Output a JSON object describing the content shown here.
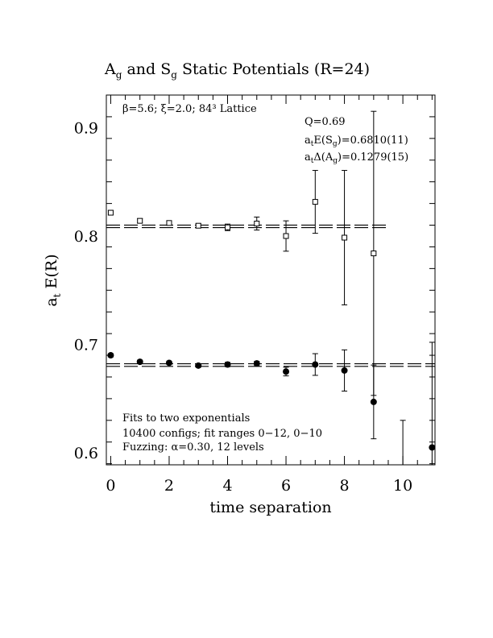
{
  "chart_data": {
    "type": "scatter",
    "title": {
      "pre": "A",
      "sub1": "g",
      "mid": " and S",
      "sub2": "g",
      "post": " Static Potentials (R=24)"
    },
    "xlabel": "time separation",
    "ylabel": {
      "main": "a",
      "sub": "t",
      "rest": " E(R)"
    },
    "xlim": [
      -0.15,
      11.1
    ],
    "ylim": [
      0.589,
      0.93
    ],
    "x_ticks": [
      "0",
      "2",
      "4",
      "6",
      "8",
      "10"
    ],
    "y_ticks": [
      "0.6",
      "0.7",
      "0.8",
      "0.9"
    ],
    "annotations": {
      "lattice": "β=5.6; ξ=2.0; 84³ Lattice",
      "q": "Q=0.69",
      "es": {
        "pre": "a",
        "sub1": "t",
        "mid": "E(S",
        "sub2": "g",
        "post": ")=0.6810(11)"
      },
      "da": {
        "pre": "a",
        "sub1": "t",
        "mid": "Δ(A",
        "sub2": "g",
        "post": ")=0.1279(15)"
      },
      "fit1": "Fits to two exponentials",
      "fit2": "10400 configs; fit ranges 0−12, 0−10",
      "fit3": "Fuzzing: α=0.30, 12 levels"
    },
    "series": [
      {
        "marker": "open-square",
        "fit": 0.8089,
        "fit_x": [
          -0.15,
          9.45
        ],
        "points": [
          {
            "x": 0,
            "y": 0.8215,
            "err": 0.002
          },
          {
            "x": 1,
            "y": 0.814,
            "err": 0.002
          },
          {
            "x": 2,
            "y": 0.812,
            "err": 0.002
          },
          {
            "x": 3,
            "y": 0.8095,
            "err": 0.002
          },
          {
            "x": 4,
            "y": 0.808,
            "err": 0.003
          },
          {
            "x": 5,
            "y": 0.8115,
            "err": 0.006
          },
          {
            "x": 6,
            "y": 0.8,
            "err": 0.014
          },
          {
            "x": 7,
            "y": 0.8315,
            "err": 0.029
          },
          {
            "x": 8,
            "y": 0.7985,
            "err": 0.062
          },
          {
            "x": 9,
            "y": 0.784,
            "err": 0.131
          }
        ]
      },
      {
        "marker": "filled-circle",
        "fit": 0.681,
        "fit_x": [
          -0.15,
          11.1
        ],
        "points": [
          {
            "x": 0,
            "y": 0.69,
            "err": 0.0015
          },
          {
            "x": 1,
            "y": 0.684,
            "err": 0.0015
          },
          {
            "x": 2,
            "y": 0.683,
            "err": 0.0015
          },
          {
            "x": 3,
            "y": 0.6805,
            "err": 0.0015
          },
          {
            "x": 4,
            "y": 0.6815,
            "err": 0.002
          },
          {
            "x": 5,
            "y": 0.6825,
            "err": 0.002
          },
          {
            "x": 6,
            "y": 0.675,
            "err": 0.004
          },
          {
            "x": 7,
            "y": 0.6815,
            "err": 0.01
          },
          {
            "x": 8,
            "y": 0.676,
            "err": 0.019
          },
          {
            "x": 9,
            "y": 0.647,
            "err": 0.034
          },
          {
            "x": 10,
            "y": 0.568,
            "err": 0.062
          },
          {
            "x": 11,
            "y": 0.605,
            "err": 0.097
          }
        ]
      }
    ]
  }
}
